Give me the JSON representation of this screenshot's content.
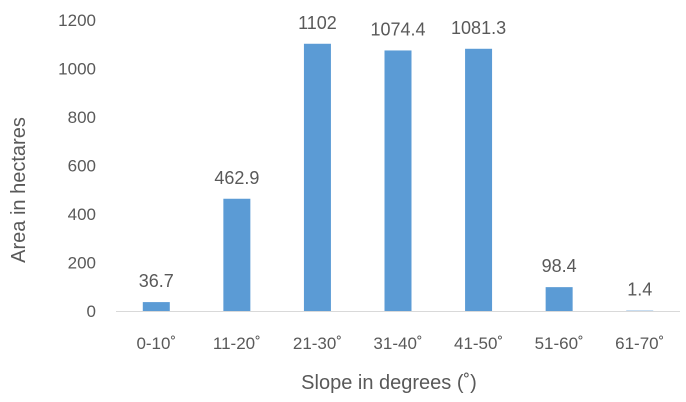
{
  "chart_data": {
    "type": "bar",
    "categories": [
      "0-10˚",
      "11-20˚",
      "21-30˚",
      "31-40˚",
      "41-50˚",
      "51-60˚",
      "61-70˚"
    ],
    "values": [
      36.7,
      462.9,
      1102,
      1074.4,
      1081.3,
      98.4,
      1.4
    ],
    "data_labels": [
      "36.7",
      "462.9",
      "1102",
      "1074.4",
      "1081.3",
      "98.4",
      "1.4"
    ],
    "y_ticks": [
      "0",
      "200",
      "400",
      "600",
      "800",
      "1000",
      "1200"
    ],
    "xlabel": "Slope in degrees (˚)",
    "ylabel": "Area in hectares",
    "ylim": [
      0,
      1200
    ],
    "grid": false,
    "legend": "none",
    "bar_color": "#5b9bd5",
    "axis_color": "#d9d9d9"
  }
}
